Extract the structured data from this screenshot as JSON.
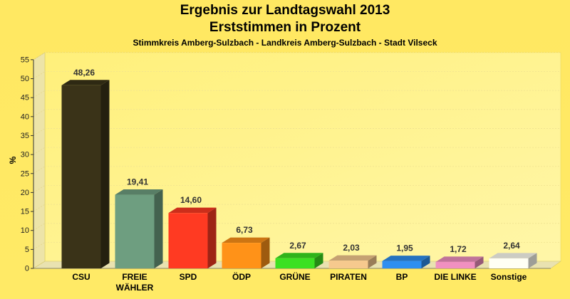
{
  "header": {
    "title": "Ergebnis zur Landtagswahl 2013",
    "subtitle": "Erststimmen in Prozent",
    "region": "Stimmkreis Amberg-Sulzbach - Landkreis Amberg-Sulzbach - Stadt Vilseck"
  },
  "chart_data": {
    "type": "bar",
    "title": "Ergebnis zur Landtagswahl 2013",
    "subtitle": "Erststimmen in Prozent",
    "xlabel": "",
    "ylabel": "%",
    "ylim": [
      0,
      55
    ],
    "yticks": [
      "0",
      "5",
      "10",
      "15",
      "20",
      "25",
      "30",
      "35",
      "40",
      "45",
      "50",
      "55"
    ],
    "grid": true,
    "categories": [
      "CSU",
      "FREIE WÄHLER",
      "SPD",
      "ÖDP",
      "GRÜNE",
      "PIRATEN",
      "BP",
      "DIE LINKE",
      "Sonstige"
    ],
    "category_lines": [
      [
        "CSU"
      ],
      [
        "FREIE",
        "WÄHLER"
      ],
      [
        "SPD"
      ],
      [
        "ÖDP"
      ],
      [
        "GRÜNE"
      ],
      [
        "PIRATEN"
      ],
      [
        "BP"
      ],
      [
        "DIE LINKE"
      ],
      [
        "Sonstige"
      ]
    ],
    "values": [
      48.26,
      19.41,
      14.6,
      6.73,
      2.67,
      2.03,
      1.95,
      1.72,
      2.64
    ],
    "value_labels": [
      "48,26",
      "19,41",
      "14,60",
      "6,73",
      "2,67",
      "2,03",
      "1,95",
      "1,72",
      "2,64"
    ],
    "colors": [
      "#3A3318",
      "#6E9E80",
      "#FF3A22",
      "#FF9218",
      "#3BE022",
      "#F6C98E",
      "#2E8FF0",
      "#F090C0",
      "#FFFFF4"
    ]
  }
}
